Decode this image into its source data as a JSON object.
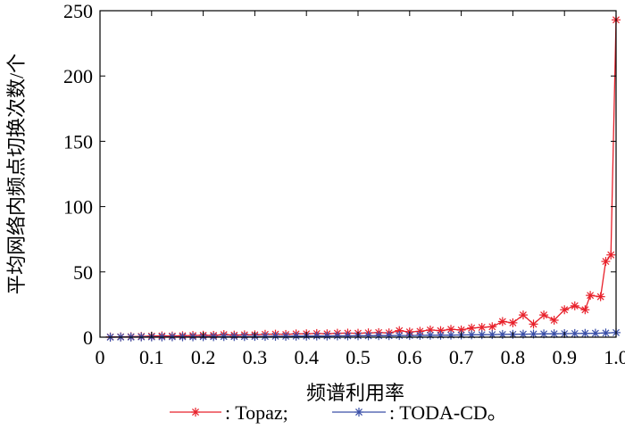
{
  "chart_data": {
    "type": "line",
    "xlabel": "频谱利用率",
    "ylabel": "平均网络内频点切换次数/个",
    "xlim": [
      0,
      1.0
    ],
    "ylim": [
      0,
      250
    ],
    "xticks": [
      "0",
      "0.1",
      "0.2",
      "0.3",
      "0.4",
      "0.5",
      "0.6",
      "0.7",
      "0.8",
      "0.9",
      "1.0"
    ],
    "yticks": [
      "0",
      "50",
      "100",
      "150",
      "200",
      "250"
    ],
    "grid": false,
    "legend_position": "bottom",
    "legend_labels": [
      ": Topaz;",
      ": TODA-CD。"
    ],
    "series": [
      {
        "color": "#e8202a",
        "marker": "asterisk",
        "points": [
          [
            0.02,
            0.2
          ],
          [
            0.04,
            0.3
          ],
          [
            0.06,
            0.4
          ],
          [
            0.08,
            0.6
          ],
          [
            0.1,
            0.8
          ],
          [
            0.12,
            1.0
          ],
          [
            0.14,
            0.9
          ],
          [
            0.16,
            1.1
          ],
          [
            0.18,
            1.3
          ],
          [
            0.2,
            1.5
          ],
          [
            0.22,
            1.4
          ],
          [
            0.24,
            2.0
          ],
          [
            0.26,
            1.6
          ],
          [
            0.28,
            1.8
          ],
          [
            0.3,
            1.8
          ],
          [
            0.32,
            2.2
          ],
          [
            0.34,
            2.3
          ],
          [
            0.36,
            2.1
          ],
          [
            0.38,
            2.5
          ],
          [
            0.4,
            2.6
          ],
          [
            0.42,
            2.8
          ],
          [
            0.44,
            2.6
          ],
          [
            0.46,
            3.0
          ],
          [
            0.48,
            3.1
          ],
          [
            0.5,
            3.0
          ],
          [
            0.52,
            3.3
          ],
          [
            0.54,
            3.5
          ],
          [
            0.56,
            3.3
          ],
          [
            0.58,
            5.0
          ],
          [
            0.6,
            4.0
          ],
          [
            0.62,
            4.5
          ],
          [
            0.64,
            5.5
          ],
          [
            0.66,
            5.0
          ],
          [
            0.68,
            6.0
          ],
          [
            0.7,
            5.5
          ],
          [
            0.72,
            7.0
          ],
          [
            0.74,
            7.5
          ],
          [
            0.76,
            8.0
          ],
          [
            0.78,
            12.0
          ],
          [
            0.8,
            11.0
          ],
          [
            0.82,
            17.0
          ],
          [
            0.84,
            10.0
          ],
          [
            0.86,
            17.0
          ],
          [
            0.88,
            13.0
          ],
          [
            0.9,
            21.0
          ],
          [
            0.92,
            24.0
          ],
          [
            0.94,
            21.0
          ],
          [
            0.95,
            32.0
          ],
          [
            0.97,
            31.0
          ],
          [
            0.98,
            58.0
          ],
          [
            0.99,
            63.0
          ],
          [
            1.0,
            243.0
          ]
        ]
      },
      {
        "color": "#3a4fa8",
        "marker": "asterisk",
        "points": [
          [
            0.02,
            0.0
          ],
          [
            0.04,
            0.1
          ],
          [
            0.06,
            0.1
          ],
          [
            0.08,
            0.2
          ],
          [
            0.1,
            0.2
          ],
          [
            0.12,
            0.2
          ],
          [
            0.14,
            0.3
          ],
          [
            0.16,
            0.3
          ],
          [
            0.18,
            0.3
          ],
          [
            0.2,
            0.4
          ],
          [
            0.22,
            0.4
          ],
          [
            0.24,
            0.5
          ],
          [
            0.26,
            0.5
          ],
          [
            0.28,
            0.5
          ],
          [
            0.3,
            0.6
          ],
          [
            0.32,
            0.6
          ],
          [
            0.34,
            0.7
          ],
          [
            0.36,
            0.7
          ],
          [
            0.38,
            0.8
          ],
          [
            0.4,
            0.8
          ],
          [
            0.42,
            0.9
          ],
          [
            0.44,
            0.9
          ],
          [
            0.46,
            1.0
          ],
          [
            0.48,
            1.0
          ],
          [
            0.5,
            1.1
          ],
          [
            0.52,
            1.1
          ],
          [
            0.54,
            1.2
          ],
          [
            0.56,
            1.2
          ],
          [
            0.58,
            1.3
          ],
          [
            0.6,
            1.3
          ],
          [
            0.62,
            1.4
          ],
          [
            0.64,
            1.5
          ],
          [
            0.66,
            1.5
          ],
          [
            0.68,
            1.6
          ],
          [
            0.7,
            1.7
          ],
          [
            0.72,
            1.8
          ],
          [
            0.74,
            1.9
          ],
          [
            0.76,
            2.0
          ],
          [
            0.78,
            2.1
          ],
          [
            0.8,
            2.2
          ],
          [
            0.82,
            2.3
          ],
          [
            0.84,
            2.4
          ],
          [
            0.86,
            2.5
          ],
          [
            0.88,
            2.6
          ],
          [
            0.9,
            2.7
          ],
          [
            0.92,
            2.8
          ],
          [
            0.94,
            2.9
          ],
          [
            0.96,
            3.0
          ],
          [
            0.98,
            3.2
          ],
          [
            1.0,
            3.5
          ]
        ]
      }
    ]
  }
}
